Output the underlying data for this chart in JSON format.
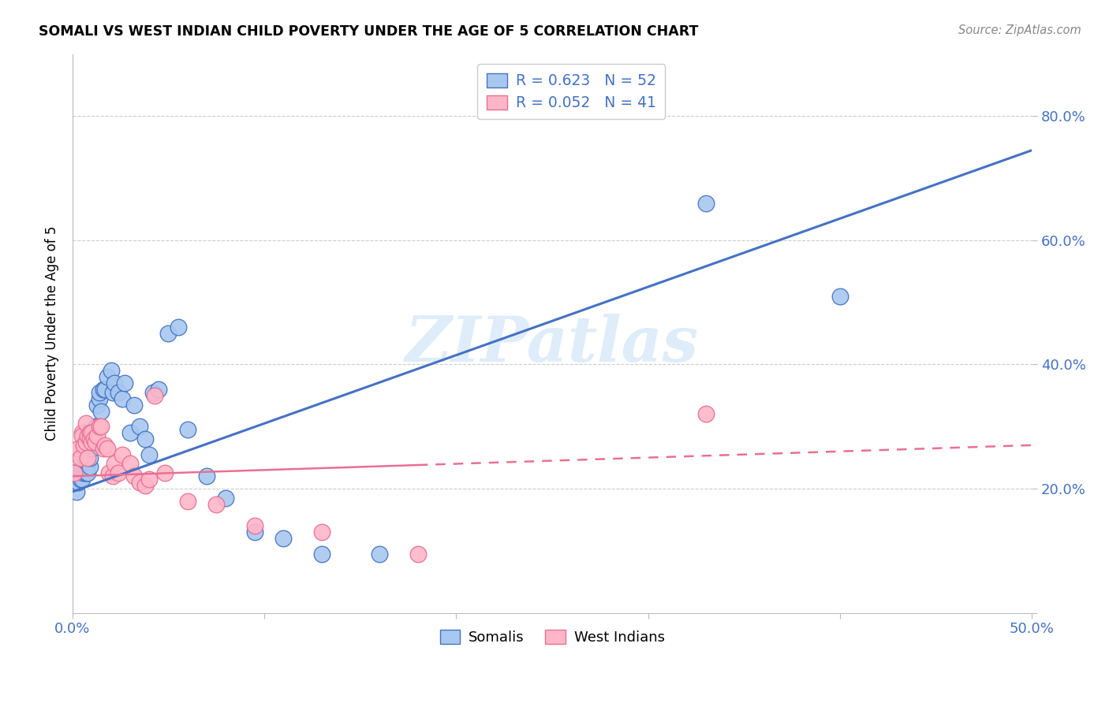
{
  "title": "SOMALI VS WEST INDIAN CHILD POVERTY UNDER THE AGE OF 5 CORRELATION CHART",
  "source": "Source: ZipAtlas.com",
  "ylabel": "Child Poverty Under the Age of 5",
  "xlim": [
    0.0,
    0.5
  ],
  "ylim": [
    0.0,
    0.9
  ],
  "x_tick_positions": [
    0.0,
    0.1,
    0.2,
    0.3,
    0.4,
    0.5
  ],
  "x_tick_labels": [
    "0.0%",
    "",
    "",
    "",
    "",
    "50.0%"
  ],
  "y_tick_positions": [
    0.2,
    0.4,
    0.6,
    0.8
  ],
  "y_tick_labels": [
    "20.0%",
    "40.0%",
    "60.0%",
    "80.0%"
  ],
  "somali_fill_color": "#A8C8F0",
  "somali_edge_color": "#4472C4",
  "west_fill_color": "#FFB6C8",
  "west_edge_color": "#E87090",
  "somali_line_color": "#4472C4",
  "west_line_color": "#E87090",
  "somali_R": 0.623,
  "somali_N": 52,
  "west_R": 0.052,
  "west_N": 41,
  "watermark_text": "ZIPatlas",
  "somali_x": [
    0.001,
    0.002,
    0.003,
    0.004,
    0.004,
    0.005,
    0.005,
    0.006,
    0.006,
    0.007,
    0.007,
    0.008,
    0.008,
    0.009,
    0.009,
    0.01,
    0.01,
    0.011,
    0.011,
    0.012,
    0.013,
    0.013,
    0.014,
    0.014,
    0.015,
    0.016,
    0.017,
    0.018,
    0.02,
    0.021,
    0.022,
    0.024,
    0.026,
    0.027,
    0.03,
    0.032,
    0.035,
    0.038,
    0.04,
    0.042,
    0.045,
    0.05,
    0.055,
    0.06,
    0.07,
    0.08,
    0.095,
    0.11,
    0.13,
    0.16,
    0.33,
    0.4
  ],
  "somali_y": [
    0.225,
    0.195,
    0.21,
    0.225,
    0.215,
    0.23,
    0.215,
    0.225,
    0.235,
    0.235,
    0.225,
    0.24,
    0.225,
    0.235,
    0.25,
    0.27,
    0.265,
    0.29,
    0.28,
    0.3,
    0.3,
    0.335,
    0.345,
    0.355,
    0.325,
    0.36,
    0.36,
    0.38,
    0.39,
    0.355,
    0.37,
    0.355,
    0.345,
    0.37,
    0.29,
    0.335,
    0.3,
    0.28,
    0.255,
    0.355,
    0.36,
    0.45,
    0.46,
    0.295,
    0.22,
    0.185,
    0.13,
    0.12,
    0.095,
    0.095,
    0.66,
    0.51
  ],
  "west_x": [
    0.001,
    0.002,
    0.003,
    0.004,
    0.005,
    0.005,
    0.006,
    0.007,
    0.007,
    0.008,
    0.008,
    0.009,
    0.009,
    0.01,
    0.01,
    0.011,
    0.012,
    0.013,
    0.014,
    0.015,
    0.016,
    0.017,
    0.018,
    0.019,
    0.021,
    0.022,
    0.024,
    0.026,
    0.03,
    0.032,
    0.035,
    0.038,
    0.04,
    0.043,
    0.048,
    0.06,
    0.075,
    0.095,
    0.13,
    0.18,
    0.33
  ],
  "west_y": [
    0.225,
    0.26,
    0.265,
    0.25,
    0.29,
    0.285,
    0.27,
    0.305,
    0.275,
    0.25,
    0.285,
    0.29,
    0.28,
    0.29,
    0.275,
    0.28,
    0.275,
    0.285,
    0.3,
    0.3,
    0.265,
    0.27,
    0.265,
    0.225,
    0.22,
    0.24,
    0.225,
    0.255,
    0.24,
    0.22,
    0.21,
    0.205,
    0.215,
    0.35,
    0.225,
    0.18,
    0.175,
    0.14,
    0.13,
    0.095,
    0.32
  ],
  "bg_color": "#FFFFFF",
  "grid_color": "#CCCCCC",
  "tick_color": "#4472C4"
}
